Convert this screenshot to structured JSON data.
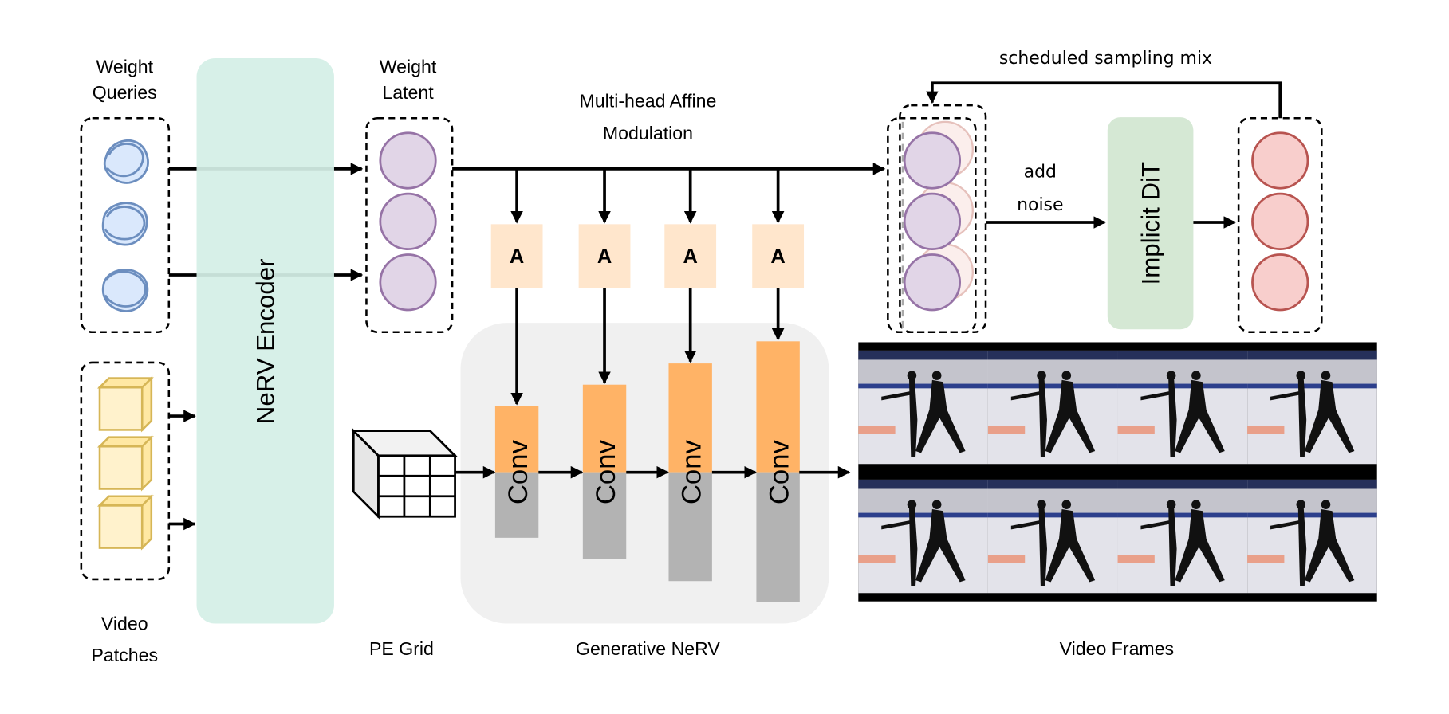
{
  "labels": {
    "weight_queries": [
      "Weight",
      "Queries"
    ],
    "weight_latent": [
      "Weight",
      "Latent"
    ],
    "video_patches": [
      "Video",
      "Patches"
    ],
    "nerv_encoder": "NeRV Encoder",
    "modulation": [
      "Multi-head Affine",
      "Modulation"
    ],
    "affine_block": "A",
    "conv_block": "Conv",
    "pe_grid": "PE Grid",
    "generative_nerv": "Generative NeRV",
    "video_frames": "Video Frames",
    "add_noise": [
      "add",
      "noise"
    ],
    "implicit_dit": "Implicit DiT",
    "scheduled_sampling": "scheduled sampling mix"
  },
  "colors": {
    "encoder_fill": "#d4efe6",
    "latent_fill": "#e1d5e7",
    "latent_stroke": "#9673a6",
    "query_stroke": "#6c8ebf",
    "patch_fill": "#fff2cc",
    "patch_stroke": "#d6b656",
    "affine_fill": "#ffe6cc",
    "conv_orange": "#ffb366",
    "conv_gray": "#b3b3b3",
    "nerv_panel": "#f0f0f0",
    "dit_fill": "#d5e8d4",
    "output_fill": "#f8cecc",
    "output_stroke": "#b85450"
  },
  "video_frames": {
    "rows": 2,
    "columns": 4
  }
}
